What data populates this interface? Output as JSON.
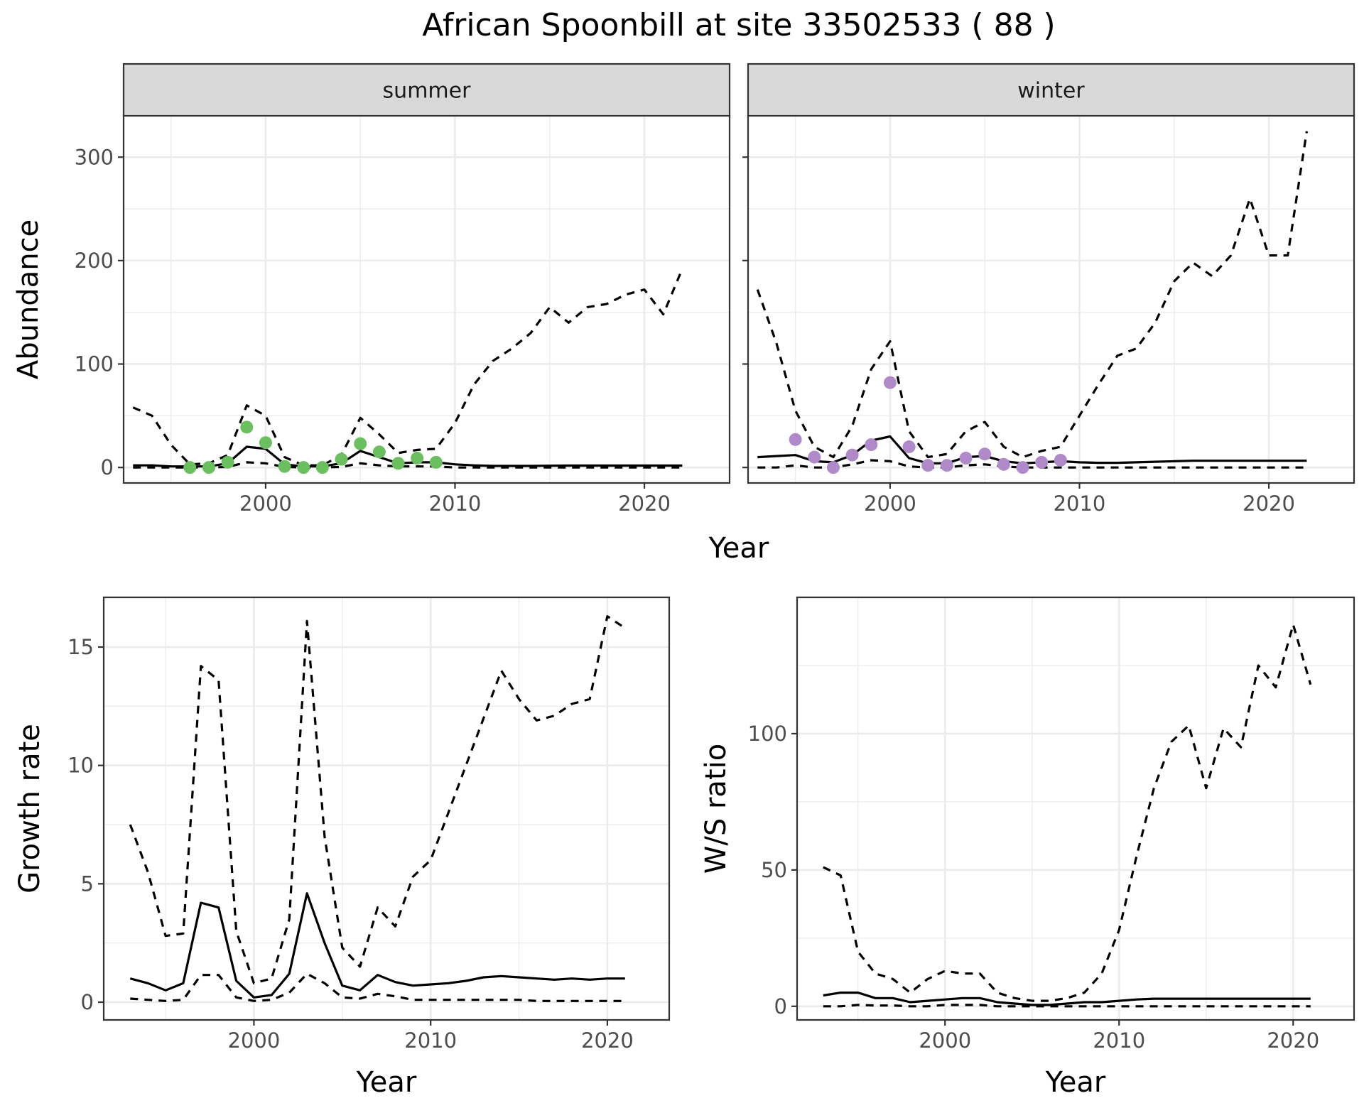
{
  "title": "African Spoonbill at site 33502533 ( 88 )",
  "colors": {
    "summer_points": "#6abf5e",
    "winter_points": "#b08ac8",
    "lines": "#000000",
    "strip_bg": "#d9d9d9"
  },
  "chart_data": [
    {
      "type": "line",
      "panel": "summer",
      "strip": "summer",
      "xlabel": "Year",
      "ylabel": "Abundance",
      "xlim": [
        1992.5,
        2024.5
      ],
      "ylim": [
        -15,
        340
      ],
      "x_ticks": [
        2000,
        2010,
        2020
      ],
      "y_ticks": [
        0,
        100,
        200,
        300
      ],
      "show_y_tick_labels": true,
      "grid": true,
      "x": [
        1993,
        1994,
        1995,
        1996,
        1997,
        1998,
        1999,
        2000,
        2001,
        2002,
        2003,
        2004,
        2005,
        2006,
        2007,
        2008,
        2009,
        2010,
        2011,
        2012,
        2013,
        2014,
        2015,
        2016,
        2017,
        2018,
        2019,
        2020,
        2021,
        2022
      ],
      "series": [
        {
          "role": "upper",
          "style": "dashed",
          "values": [
            58,
            50,
            22,
            3,
            4,
            12,
            60,
            50,
            10,
            2,
            2,
            12,
            48,
            32,
            14,
            17,
            18,
            43,
            80,
            103,
            115,
            130,
            155,
            140,
            155,
            158,
            167,
            172,
            148,
            192
          ]
        },
        {
          "role": "mean",
          "style": "solid",
          "values": [
            2,
            2,
            1,
            1,
            1,
            4,
            20,
            18,
            3,
            1,
            1,
            4,
            16,
            10,
            4,
            5,
            5,
            3,
            2,
            1.5,
            1.5,
            1.5,
            1.7,
            1.8,
            1.8,
            1.8,
            1.8,
            1.8,
            1.8,
            1.8
          ]
        },
        {
          "role": "lower",
          "style": "dashed",
          "values": [
            0,
            0,
            0,
            0,
            0,
            0.5,
            5,
            4,
            0.5,
            0,
            0,
            0.5,
            4,
            2,
            1,
            1,
            1,
            0,
            0,
            0,
            0,
            0,
            0,
            0,
            0,
            0,
            0,
            0,
            0,
            0
          ]
        }
      ],
      "points": {
        "x": [
          1996,
          1997,
          1998,
          1999,
          2000,
          2001,
          2002,
          2003,
          2004,
          2005,
          2006,
          2007,
          2008,
          2009
        ],
        "values": [
          0,
          0,
          5,
          39,
          24,
          1,
          0,
          0,
          8,
          23,
          15,
          4,
          9,
          5
        ]
      }
    },
    {
      "type": "line",
      "panel": "winter",
      "strip": "winter",
      "xlabel": "",
      "ylabel": "",
      "xlim": [
        1992.5,
        2024.5
      ],
      "ylim": [
        -15,
        340
      ],
      "x_ticks": [
        2000,
        2010,
        2020
      ],
      "y_ticks": [
        0,
        100,
        200,
        300
      ],
      "show_y_tick_labels": false,
      "grid": true,
      "x": [
        1993,
        1994,
        1995,
        1996,
        1997,
        1998,
        1999,
        2000,
        2001,
        2002,
        2003,
        2004,
        2005,
        2006,
        2007,
        2008,
        2009,
        2010,
        2011,
        2012,
        2013,
        2014,
        2015,
        2016,
        2017,
        2018,
        2019,
        2020,
        2021,
        2022
      ],
      "series": [
        {
          "role": "upper",
          "style": "dashed",
          "values": [
            172,
            120,
            55,
            20,
            10,
            40,
            95,
            122,
            35,
            10,
            13,
            35,
            44,
            20,
            10,
            16,
            20,
            50,
            80,
            108,
            115,
            140,
            180,
            198,
            185,
            205,
            260,
            205,
            205,
            325
          ]
        },
        {
          "role": "mean",
          "style": "solid",
          "values": [
            10,
            11,
            12,
            6,
            5,
            12,
            26,
            30,
            9,
            4,
            4,
            10,
            11,
            6,
            4,
            5,
            6,
            5,
            4.5,
            4.5,
            5,
            5.5,
            6,
            6.5,
            6.5,
            6.5,
            6.5,
            6.5,
            6.5,
            6.5
          ]
        },
        {
          "role": "lower",
          "style": "dashed",
          "values": [
            0,
            0,
            2,
            0,
            0,
            3,
            7,
            6,
            1,
            0,
            0,
            2,
            3,
            1,
            0,
            0,
            0,
            0,
            0,
            0,
            0,
            0,
            0,
            0,
            0,
            0,
            0,
            0,
            0,
            0
          ]
        }
      ],
      "points": {
        "x": [
          1995,
          1996,
          1997,
          1998,
          1999,
          2000,
          2001,
          2002,
          2003,
          2004,
          2005,
          2006,
          2007,
          2008,
          2009
        ],
        "values": [
          27,
          10,
          0,
          12,
          22,
          82,
          20,
          2,
          2,
          9,
          13,
          3,
          0,
          5,
          7
        ]
      }
    },
    {
      "type": "line",
      "panel": "growth",
      "xlabel": "Year",
      "ylabel": "Growth rate",
      "xlim": [
        1991.5,
        2023.5
      ],
      "ylim": [
        -0.75,
        17.1
      ],
      "x_ticks": [
        2000,
        2010,
        2020
      ],
      "y_ticks": [
        0,
        5,
        10,
        15
      ],
      "show_y_tick_labels": true,
      "grid": true,
      "x": [
        1993,
        1994,
        1995,
        1996,
        1997,
        1998,
        1999,
        2000,
        2001,
        2002,
        2003,
        2004,
        2005,
        2006,
        2007,
        2008,
        2009,
        2010,
        2011,
        2012,
        2013,
        2014,
        2015,
        2016,
        2017,
        2018,
        2019,
        2020,
        2021
      ],
      "series": [
        {
          "role": "upper",
          "style": "dashed",
          "values": [
            7.5,
            5.5,
            2.8,
            2.9,
            14.2,
            13.6,
            3.0,
            0.8,
            1.0,
            3.5,
            16.1,
            7.0,
            2.3,
            1.5,
            4.0,
            3.2,
            5.3,
            6.0,
            8.0,
            10.0,
            12.0,
            14.0,
            12.8,
            11.9,
            12.1,
            12.6,
            12.8,
            16.3,
            15.8
          ]
        },
        {
          "role": "mean",
          "style": "solid",
          "values": [
            1.0,
            0.8,
            0.5,
            0.8,
            4.2,
            4.0,
            0.9,
            0.2,
            0.3,
            1.2,
            4.6,
            2.5,
            0.7,
            0.5,
            1.15,
            0.85,
            0.7,
            0.75,
            0.8,
            0.9,
            1.05,
            1.1,
            1.05,
            1.0,
            0.95,
            1.0,
            0.95,
            1.0,
            1.0
          ]
        },
        {
          "role": "lower",
          "style": "dashed",
          "values": [
            0.15,
            0.1,
            0.05,
            0.1,
            1.15,
            1.15,
            0.2,
            0.05,
            0.1,
            0.4,
            1.2,
            0.8,
            0.2,
            0.15,
            0.35,
            0.25,
            0.1,
            0.1,
            0.1,
            0.1,
            0.1,
            0.1,
            0.1,
            0.05,
            0.05,
            0.05,
            0.05,
            0.05,
            0.05
          ]
        }
      ]
    },
    {
      "type": "line",
      "panel": "ratio",
      "xlabel": "Year",
      "ylabel": "W/S ratio",
      "xlim": [
        1991.5,
        2023.5
      ],
      "ylim": [
        -5,
        150
      ],
      "x_ticks": [
        2000,
        2010,
        2020
      ],
      "y_ticks": [
        0,
        50,
        100
      ],
      "show_y_tick_labels": true,
      "grid": true,
      "x": [
        1993,
        1994,
        1995,
        1996,
        1997,
        1998,
        1999,
        2000,
        2001,
        2002,
        2003,
        2004,
        2005,
        2006,
        2007,
        2008,
        2009,
        2010,
        2011,
        2012,
        2013,
        2014,
        2015,
        2016,
        2017,
        2018,
        2019,
        2020,
        2021
      ],
      "series": [
        {
          "role": "upper",
          "style": "dashed",
          "values": [
            51,
            48,
            20,
            12,
            10,
            5,
            10,
            13,
            12,
            12,
            5,
            3,
            2,
            2,
            3,
            5,
            12,
            28,
            55,
            80,
            97,
            103,
            80,
            102,
            95,
            125,
            117,
            140,
            118
          ]
        },
        {
          "role": "mean",
          "style": "solid",
          "values": [
            4,
            5,
            5,
            3,
            3,
            1.5,
            2,
            2.5,
            3,
            3,
            1.5,
            1,
            0.5,
            0.5,
            1,
            1.5,
            1.5,
            2,
            2.5,
            2.8,
            2.8,
            2.8,
            2.8,
            2.8,
            2.8,
            2.8,
            2.8,
            2.8,
            2.8
          ]
        },
        {
          "role": "lower",
          "style": "dashed",
          "values": [
            0,
            0,
            0.5,
            0.3,
            0.3,
            0,
            0,
            0.5,
            0.5,
            0.5,
            0,
            0,
            0,
            0,
            0,
            0,
            0,
            0,
            0,
            0,
            0,
            0,
            0,
            0,
            0,
            0,
            0,
            0,
            0
          ]
        }
      ]
    }
  ]
}
